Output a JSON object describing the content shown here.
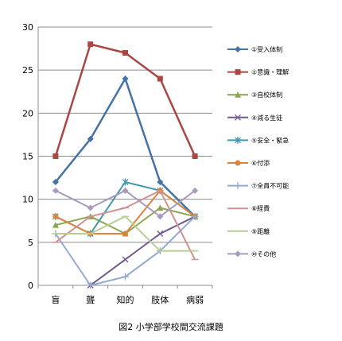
{
  "chart_data": {
    "type": "line",
    "categories": [
      "盲",
      "聾",
      "知的",
      "肢体",
      "病弱"
    ],
    "ylim": [
      0,
      30
    ],
    "yticks": [
      0,
      5,
      10,
      15,
      20,
      25,
      30
    ],
    "grid": true,
    "legend_position": "right",
    "series": [
      {
        "name": "①受入体制",
        "values": [
          12,
          17,
          24,
          12,
          8
        ],
        "color": "#4572A7",
        "marker": "diamond"
      },
      {
        "name": "②意識・理解",
        "values": [
          15,
          28,
          27,
          24,
          15
        ],
        "color": "#AA4643",
        "marker": "square"
      },
      {
        "name": "③自校体制",
        "values": [
          7,
          8,
          6,
          9,
          8
        ],
        "color": "#89A54E",
        "marker": "triangle"
      },
      {
        "name": "④減る生徒",
        "values": [
          null,
          0,
          3,
          6,
          8
        ],
        "color": "#71588F",
        "marker": "x"
      },
      {
        "name": "⑤安全・緊急",
        "values": [
          8,
          6,
          12,
          11,
          8
        ],
        "color": "#4198AF",
        "marker": "star"
      },
      {
        "name": "⑥付添",
        "values": [
          8,
          6,
          6,
          11,
          8
        ],
        "color": "#DB843D",
        "marker": "circle"
      },
      {
        "name": "⑦全員不可能",
        "values": [
          6,
          0,
          1,
          4,
          8
        ],
        "color": "#93A9CF",
        "marker": "plus"
      },
      {
        "name": "⑧経費",
        "values": [
          5,
          8,
          9,
          11,
          3
        ],
        "color": "#D19392",
        "marker": "dash"
      },
      {
        "name": "⑨距離",
        "values": [
          6,
          6,
          8,
          4,
          4
        ],
        "color": "#B9CD96",
        "marker": "dash"
      },
      {
        "name": "⑩その他",
        "values": [
          11,
          9,
          11,
          8,
          11
        ],
        "color": "#A99BBD",
        "marker": "diamond"
      }
    ]
  },
  "caption": "図2 小学部学校間交流課題"
}
